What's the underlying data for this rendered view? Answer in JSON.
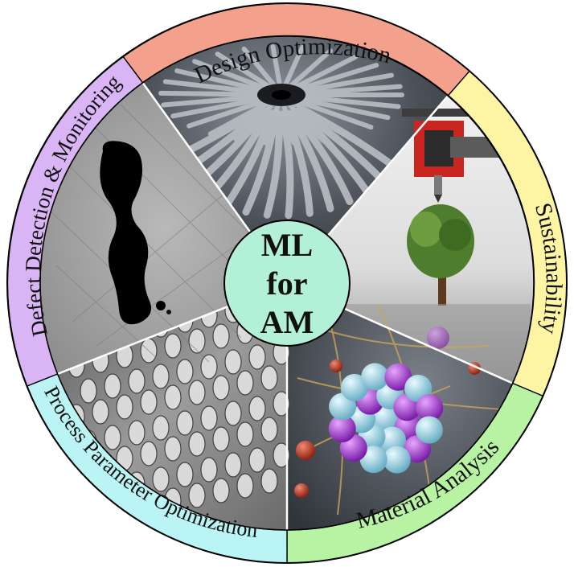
{
  "center": {
    "lines": [
      "ML",
      "for",
      "AM"
    ],
    "fill_color": "#b3f0d8"
  },
  "segments": [
    {
      "id": "design",
      "label": "Design Optimization",
      "color": "#f3a08c",
      "image": "radial-lattice-icon"
    },
    {
      "id": "sustain",
      "label": "Sustainability",
      "color": "#fdf5a4",
      "image": "3d-printer-tree-icon"
    },
    {
      "id": "material",
      "label": "Material Analysis",
      "color": "#b7f3a3",
      "image": "atom-cluster-icon"
    },
    {
      "id": "process",
      "label": "Process Parameter Optimization",
      "color": "#baf4f4",
      "image": "micro-lattice-icon"
    },
    {
      "id": "defect",
      "label": "Defect Detection & Monitoring",
      "color": "#d9b5f5",
      "image": "pore-micrograph-icon"
    }
  ]
}
